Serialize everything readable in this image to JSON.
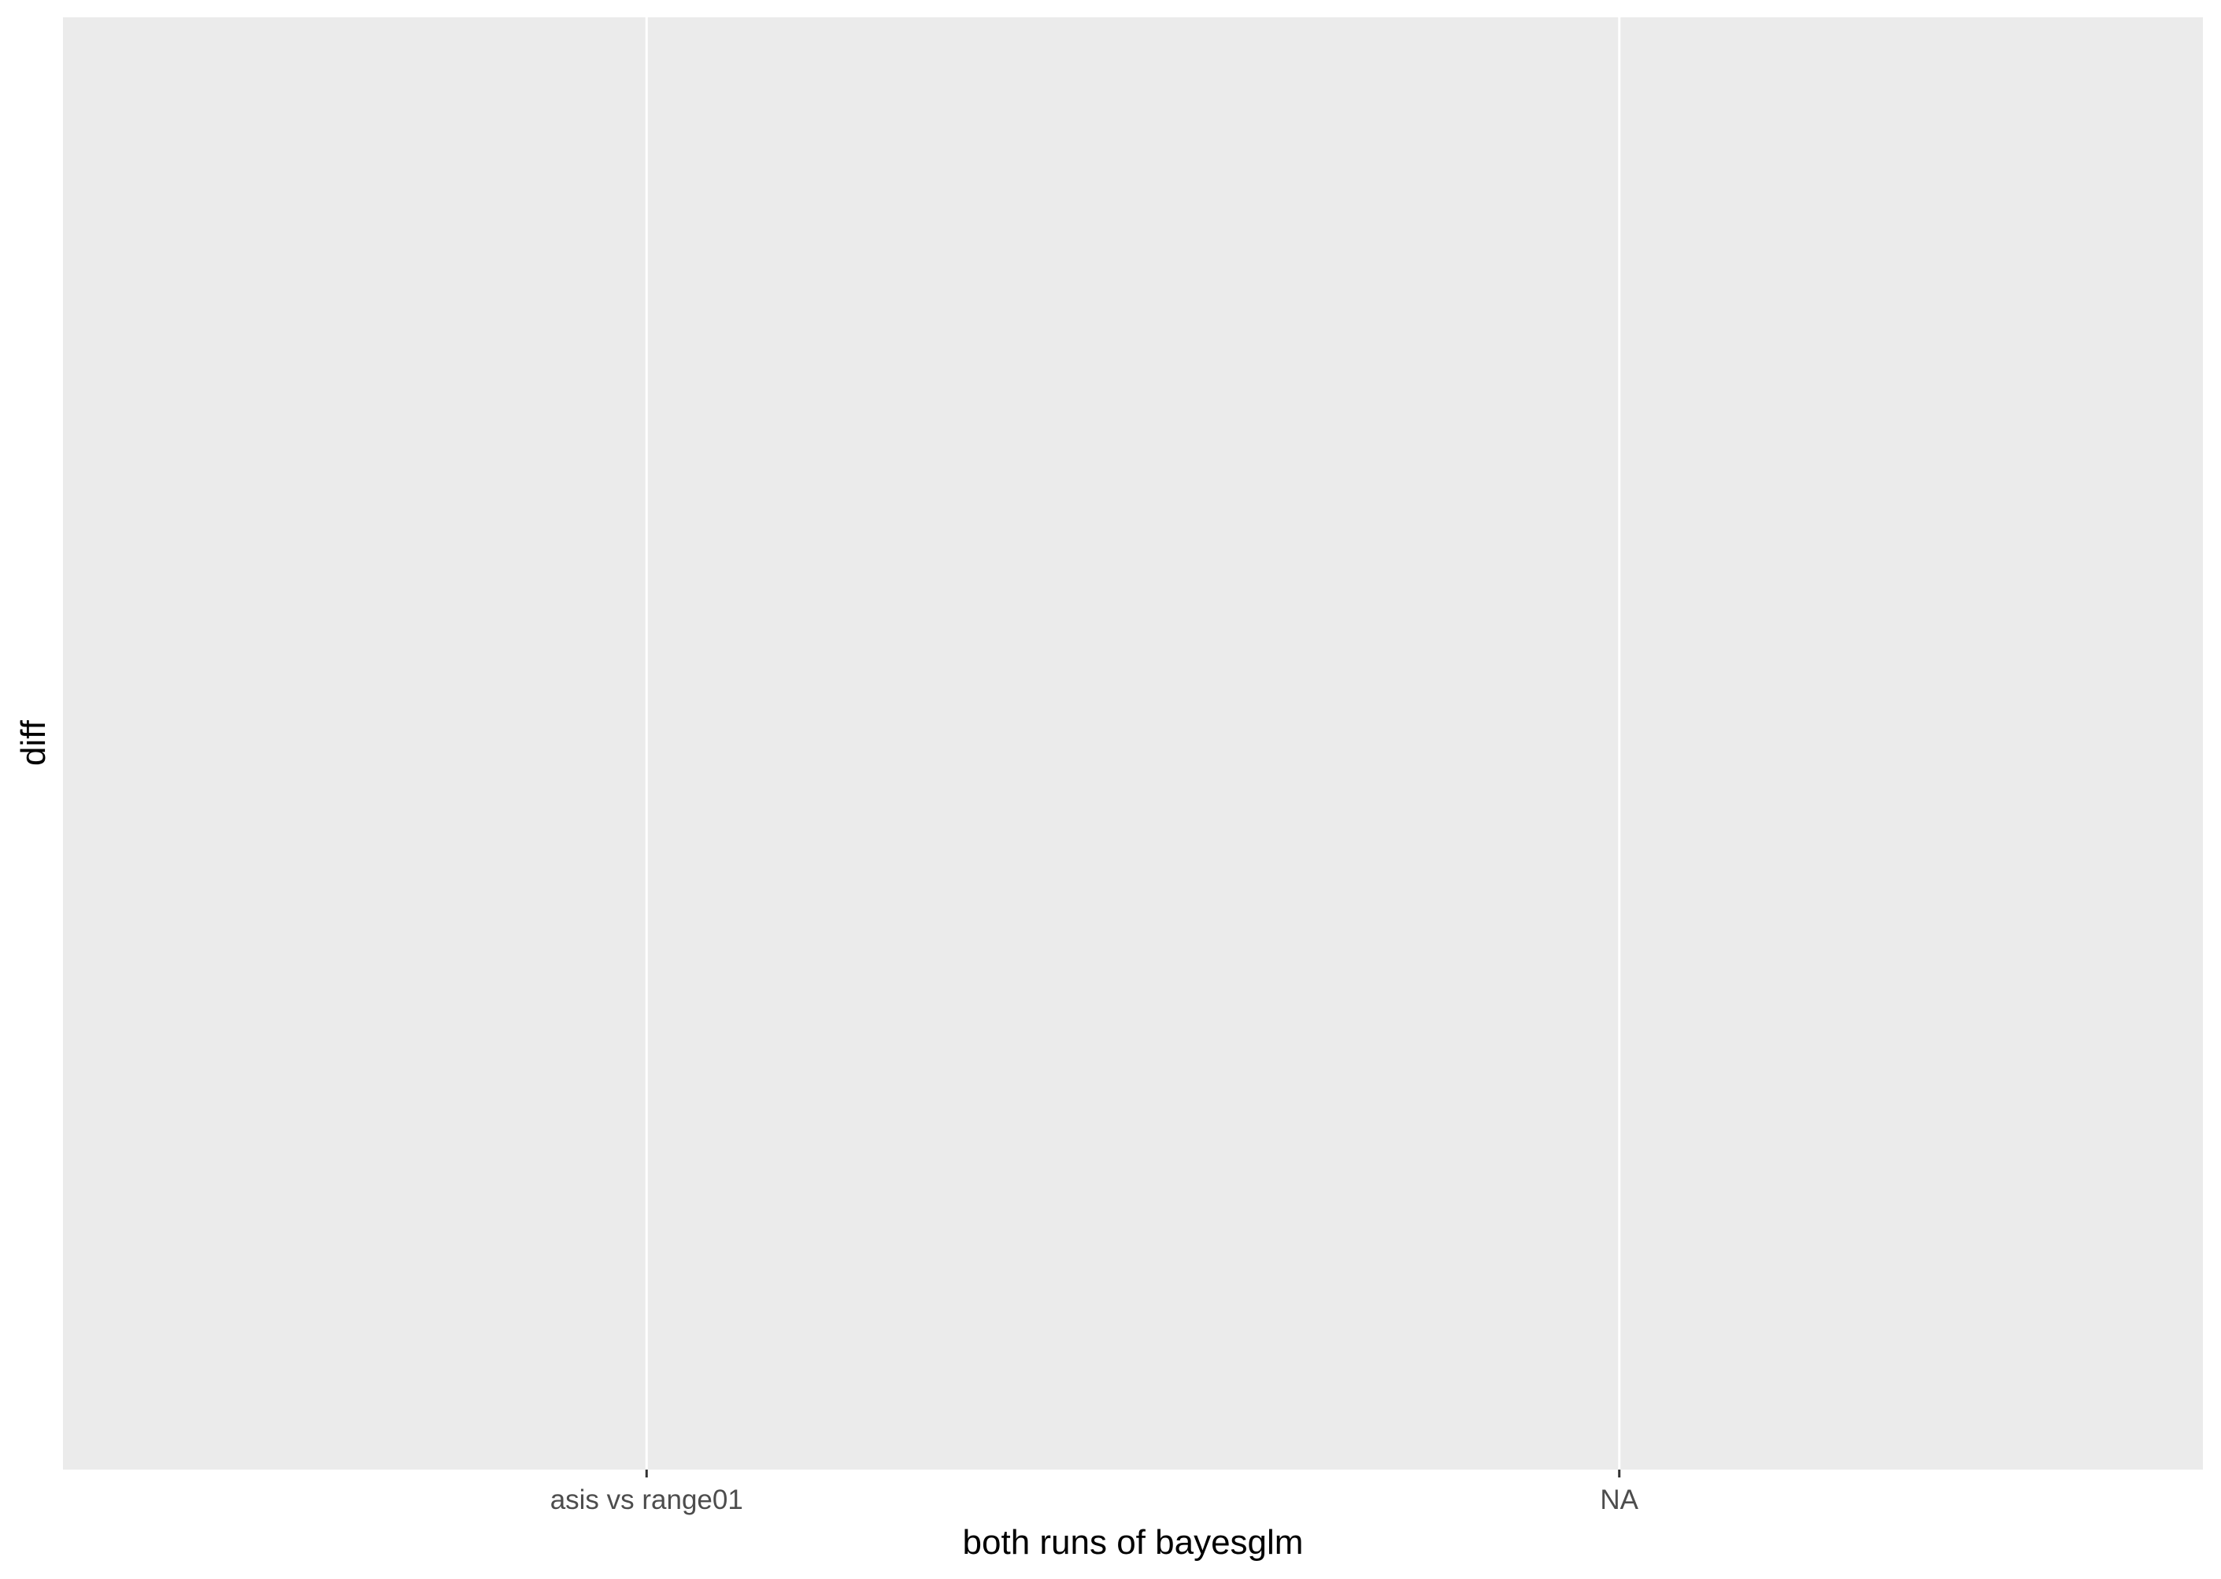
{
  "chart_data": {
    "type": "bar",
    "categories": [
      "asis vs range01",
      "NA"
    ],
    "series": [],
    "xlabel": "both runs of bayesglm",
    "ylabel": "diff",
    "y_ticks": [],
    "grid": true,
    "legend": "none",
    "colors": {
      "panel_background": "#EBEBEB",
      "grid_line": "#FFFFFF",
      "tick_label": "#4D4D4D",
      "axis_title": "#000000",
      "tick_mark": "#333333"
    }
  }
}
